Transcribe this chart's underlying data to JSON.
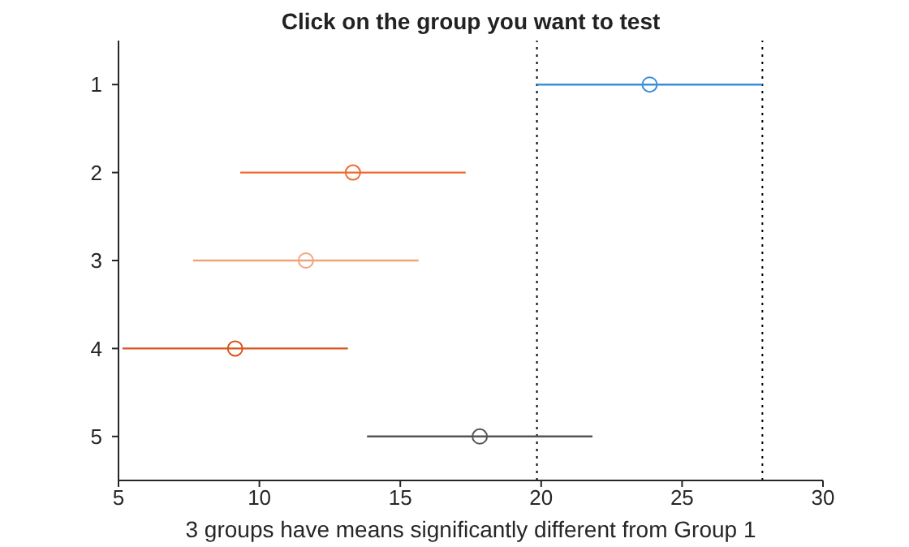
{
  "chart_data": {
    "type": "scatter",
    "orientation": "horizontal",
    "title": "Click on the group you want to test",
    "xlabel": "3 groups have means significantly different from Group 1",
    "categories": [
      "1",
      "2",
      "3",
      "4",
      "5"
    ],
    "values": [
      23.85,
      13.32,
      11.65,
      9.14,
      17.82
    ],
    "errors": [
      4,
      4,
      4,
      4,
      4
    ],
    "colors": [
      "#3a8fd9",
      "#ee6a2e",
      "#f1a57c",
      "#d95319",
      "#555555"
    ],
    "marker": "circle",
    "grid": false,
    "xlim": [
      5,
      30
    ],
    "xticks": [
      5,
      10,
      15,
      20,
      25,
      30
    ],
    "ref_lines": [
      {
        "axis": "x",
        "value": 19.85,
        "color": "#000000",
        "line_style": "dotted"
      },
      {
        "axis": "x",
        "value": 27.85,
        "color": "#000000",
        "line_style": "dotted"
      }
    ]
  }
}
